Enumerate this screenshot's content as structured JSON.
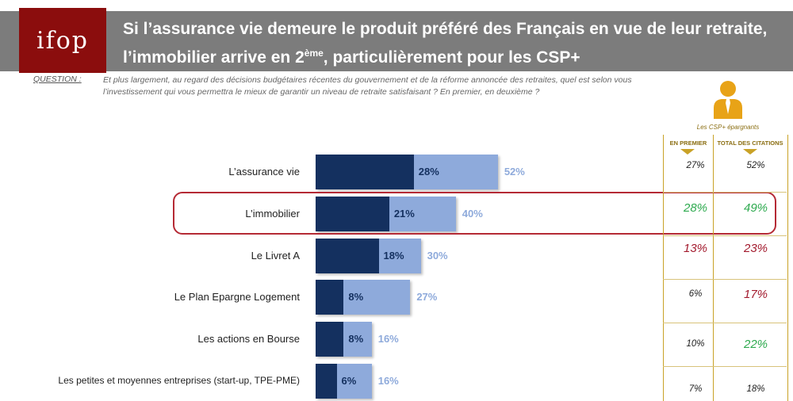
{
  "header": {
    "logo_text": "ifop",
    "title_part1": "Si l’assurance vie demeure le produit préféré des Français en vue de leur retraite, l’immobilier arrive en 2",
    "title_sup": "ème",
    "title_part2": ", particulièrement pour les CSP+"
  },
  "question": {
    "label": "QUESTION :",
    "text": "Et plus largement, au regard des décisions budgétaires récentes du gouvernement et de la réforme annoncée des retraites, quel est selon vous l’investissement qui vous permettra le mieux de garantir un niveau de retraite satisfaisant ? En premier, en deuxième ?"
  },
  "chart_data": {
    "type": "bar",
    "orientation": "horizontal",
    "categories": [
      "L’assurance vie",
      "L’immobilier",
      "Le Livret A",
      "Le Plan Epargne Logement",
      "Les actions en Bourse",
      "Les petites et moyennes entreprises (start-up, TPE-PME)"
    ],
    "series": [
      {
        "name": "",
        "values": [
          28,
          21,
          18,
          8,
          8,
          6
        ],
        "labels": [
          "28%",
          "21%",
          "18%",
          "8%",
          "8%",
          "6%"
        ],
        "color": "#14305f"
      },
      {
        "name": "",
        "values": [
          52,
          40,
          30,
          27,
          16,
          16
        ],
        "labels": [
          "52%",
          "40%",
          "30%",
          "27%",
          "16%",
          "16%"
        ],
        "color": "#8eaadb"
      }
    ],
    "highlighted_category": "L’immobilier"
  },
  "side_panel": {
    "caption": "Les CSP+ épargnants",
    "icon": "person-tie-icon",
    "col1_header": "EN PREMIER",
    "col2_header": "TOTAL DES CITATIONS",
    "rows": [
      {
        "first": "27%",
        "first_color": "#222222",
        "total": "52%",
        "total_color": "#222222"
      },
      {
        "first": "28%",
        "first_color": "#2eaa4f",
        "total": "49%",
        "total_color": "#2eaa4f"
      },
      {
        "first": "13%",
        "first_color": "#a31b2e",
        "total": "23%",
        "total_color": "#a31b2e"
      },
      {
        "first": "6%",
        "first_color": "#222222",
        "total": "17%",
        "total_color": "#a31b2e"
      },
      {
        "first": "10%",
        "first_color": "#222222",
        "total": "22%",
        "total_color": "#2eaa4f"
      },
      {
        "first": "7%",
        "first_color": "#222222",
        "total": "18%",
        "total_color": "#222222"
      }
    ],
    "accent_color": "#e8a317"
  }
}
